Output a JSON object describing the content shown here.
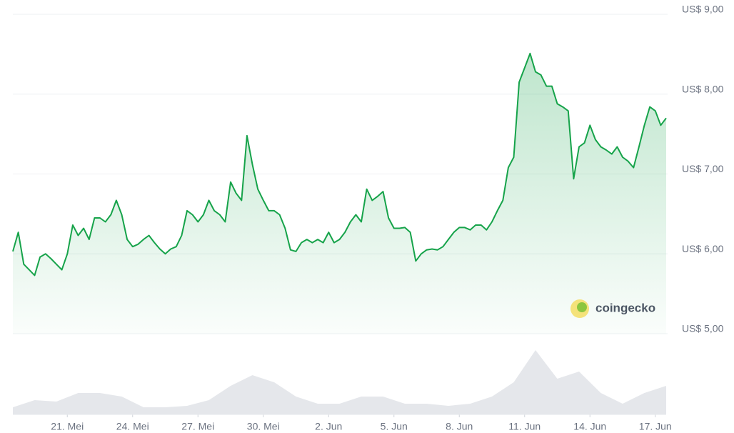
{
  "chart_data": {
    "type": "line",
    "series": [
      {
        "color": "#16a34a",
        "values": [
          6.03,
          6.27,
          5.87,
          5.8,
          5.73,
          5.96,
          6.0,
          5.94,
          5.87,
          5.8,
          6.0,
          6.36,
          6.23,
          6.32,
          6.18,
          6.45,
          6.45,
          6.4,
          6.49,
          6.67,
          6.49,
          6.18,
          6.09,
          6.12,
          6.18,
          6.23,
          6.14,
          6.06,
          6.0,
          6.06,
          6.09,
          6.23,
          6.54,
          6.49,
          6.4,
          6.49,
          6.67,
          6.54,
          6.49,
          6.4,
          6.9,
          6.76,
          6.67,
          7.48,
          7.12,
          6.81,
          6.67,
          6.54,
          6.54,
          6.49,
          6.32,
          6.05,
          6.03,
          6.14,
          6.18,
          6.14,
          6.18,
          6.14,
          6.27,
          6.14,
          6.18,
          6.27,
          6.4,
          6.49,
          6.4,
          6.81,
          6.67,
          6.72,
          6.78,
          6.45,
          6.32,
          6.32,
          6.33,
          6.27,
          5.91,
          6.0,
          6.05,
          6.06,
          6.05,
          6.09,
          6.18,
          6.27,
          6.33,
          6.33,
          6.3,
          6.36,
          6.36,
          6.3,
          6.4,
          6.54,
          6.67,
          7.08,
          7.21,
          8.15,
          8.33,
          8.51,
          8.28,
          8.24,
          8.1,
          8.1,
          7.88,
          7.84,
          7.79,
          6.94,
          7.34,
          7.39,
          7.61,
          7.43,
          7.34,
          7.3,
          7.25,
          7.34,
          7.21,
          7.16,
          7.08,
          7.34,
          7.61,
          7.84,
          7.79,
          7.61,
          7.7
        ]
      }
    ],
    "xlim": [
      0,
      120
    ],
    "xticks": [
      {
        "value": 10,
        "label": "21. Mei"
      },
      {
        "value": 22,
        "label": "24. Mei"
      },
      {
        "value": 34,
        "label": "27. Mei"
      },
      {
        "value": 46,
        "label": "30. Mei"
      },
      {
        "value": 58,
        "label": "2. Jun"
      },
      {
        "value": 70,
        "label": "5. Jun"
      },
      {
        "value": 82,
        "label": "8. Jun"
      },
      {
        "value": 94,
        "label": "11. Jun"
      },
      {
        "value": 106,
        "label": "14. Jun"
      },
      {
        "value": 118,
        "label": "17. Jun"
      }
    ],
    "ylim": [
      5,
      9
    ],
    "yticks": [
      {
        "value": 9,
        "label": "US$ 9,00"
      },
      {
        "value": 8,
        "label": "US$ 8,00"
      },
      {
        "value": 7,
        "label": "US$ 7,00"
      },
      {
        "value": 6,
        "label": "US$ 6,00"
      },
      {
        "value": 5,
        "label": "US$ 5,00"
      }
    ],
    "grid": true,
    "volume": {
      "color": "#e5e7eb",
      "ylim": [
        0,
        100
      ],
      "values": [
        10,
        20,
        18,
        30,
        30,
        25,
        10,
        10,
        12,
        20,
        40,
        55,
        45,
        25,
        15,
        15,
        25,
        25,
        15,
        15,
        12,
        15,
        25,
        45,
        90,
        50,
        60,
        30,
        15,
        30,
        40
      ]
    },
    "watermark": "coingecko"
  }
}
